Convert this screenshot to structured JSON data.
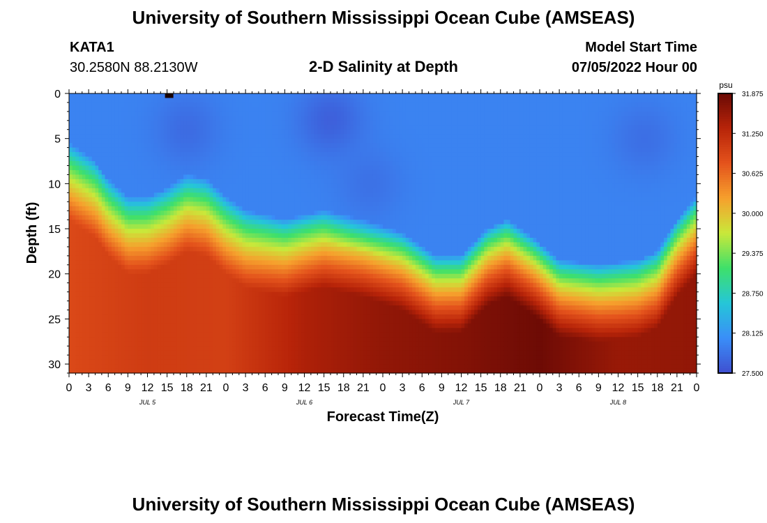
{
  "header": {
    "title": "University of Southern Mississippi Ocean Cube (AMSEAS)",
    "station_id": "KATA1",
    "coordinates": "30.2580N  88.2130W",
    "subtitle": "2-D Salinity at Depth",
    "model_start_label": "Model Start Time",
    "model_start_value": "07/05/2022 Hour 00"
  },
  "footer": {
    "title": "University of Southern Mississippi Ocean Cube (AMSEAS)"
  },
  "chart_data": {
    "type": "heatmap",
    "title": "2-D Salinity at Depth",
    "xlabel": "Forecast Time(Z)",
    "ylabel": "Depth (ft)",
    "x_hours": [
      0,
      96
    ],
    "ylim": [
      0,
      31
    ],
    "y_ticks": [
      0,
      5,
      10,
      15,
      20,
      25,
      30
    ],
    "x_tick_labels": [
      "0",
      "3",
      "6",
      "9",
      "12",
      "15",
      "18",
      "21",
      "0",
      "3",
      "6",
      "9",
      "12",
      "15",
      "18",
      "21",
      "0",
      "3",
      "6",
      "9",
      "12",
      "15",
      "18",
      "21",
      "0",
      "3",
      "6",
      "9",
      "12",
      "15",
      "18",
      "21",
      "0"
    ],
    "day_labels": [
      {
        "label": "JUL 5",
        "hour": 12
      },
      {
        "label": "JUL 6",
        "hour": 36
      },
      {
        "label": "JUL 7",
        "hour": 60
      },
      {
        "label": "JUL 8",
        "hour": 84
      }
    ],
    "colorbar": {
      "unit": "psu",
      "min": 27.5,
      "max": 31.875,
      "ticks": [
        "31.875",
        "31.250",
        "30.625",
        "30.000",
        "29.375",
        "28.750",
        "28.125",
        "27.500"
      ],
      "colors": [
        "#3f4fd0",
        "#3a8ef8",
        "#25c6d8",
        "#3ee06a",
        "#c9e83a",
        "#f6a02d",
        "#e4531c",
        "#b82409",
        "#6a0a05"
      ]
    },
    "interface_depth_ft": [
      {
        "hour": 0,
        "depth": 9
      },
      {
        "hour": 4,
        "depth": 11
      },
      {
        "hour": 6,
        "depth": 13
      },
      {
        "hour": 9,
        "depth": 15
      },
      {
        "hour": 12,
        "depth": 15
      },
      {
        "hour": 15,
        "depth": 14
      },
      {
        "hour": 18,
        "depth": 12.5
      },
      {
        "hour": 21,
        "depth": 13
      },
      {
        "hour": 24,
        "depth": 15
      },
      {
        "hour": 27,
        "depth": 16.5
      },
      {
        "hour": 33,
        "depth": 17.5
      },
      {
        "hour": 39,
        "depth": 16.5
      },
      {
        "hour": 45,
        "depth": 17.5
      },
      {
        "hour": 51,
        "depth": 19
      },
      {
        "hour": 56,
        "depth": 21.5
      },
      {
        "hour": 60,
        "depth": 21.5
      },
      {
        "hour": 64,
        "depth": 18.5
      },
      {
        "hour": 67,
        "depth": 17.5
      },
      {
        "hour": 71,
        "depth": 19.5
      },
      {
        "hour": 75,
        "depth": 22
      },
      {
        "hour": 81,
        "depth": 22.5
      },
      {
        "hour": 87,
        "depth": 22
      },
      {
        "hour": 90,
        "depth": 21
      },
      {
        "hour": 93,
        "depth": 17.5
      },
      {
        "hour": 96,
        "depth": 15
      }
    ],
    "surface_salinity_psu": 27.95,
    "fresh_patches": [
      {
        "hour": 18,
        "depth": 4,
        "salinity": 27.75
      },
      {
        "hour": 40,
        "depth": 3,
        "salinity": 27.65
      },
      {
        "hour": 46,
        "depth": 10,
        "salinity": 27.8
      },
      {
        "hour": 88,
        "depth": 5,
        "salinity": 27.78
      }
    ],
    "deep_salinity_psu": [
      {
        "hour": 0,
        "salinity": 30.9
      },
      {
        "hour": 12,
        "salinity": 31.05
      },
      {
        "hour": 24,
        "salinity": 31.0
      },
      {
        "hour": 36,
        "salinity": 31.4
      },
      {
        "hour": 48,
        "salinity": 31.6
      },
      {
        "hour": 60,
        "salinity": 31.7
      },
      {
        "hour": 72,
        "salinity": 31.85
      },
      {
        "hour": 84,
        "salinity": 31.55
      },
      {
        "hour": 96,
        "salinity": 31.6
      }
    ],
    "spike": {
      "hour": 15,
      "depth": 0.2,
      "salinity": 31.875
    }
  }
}
